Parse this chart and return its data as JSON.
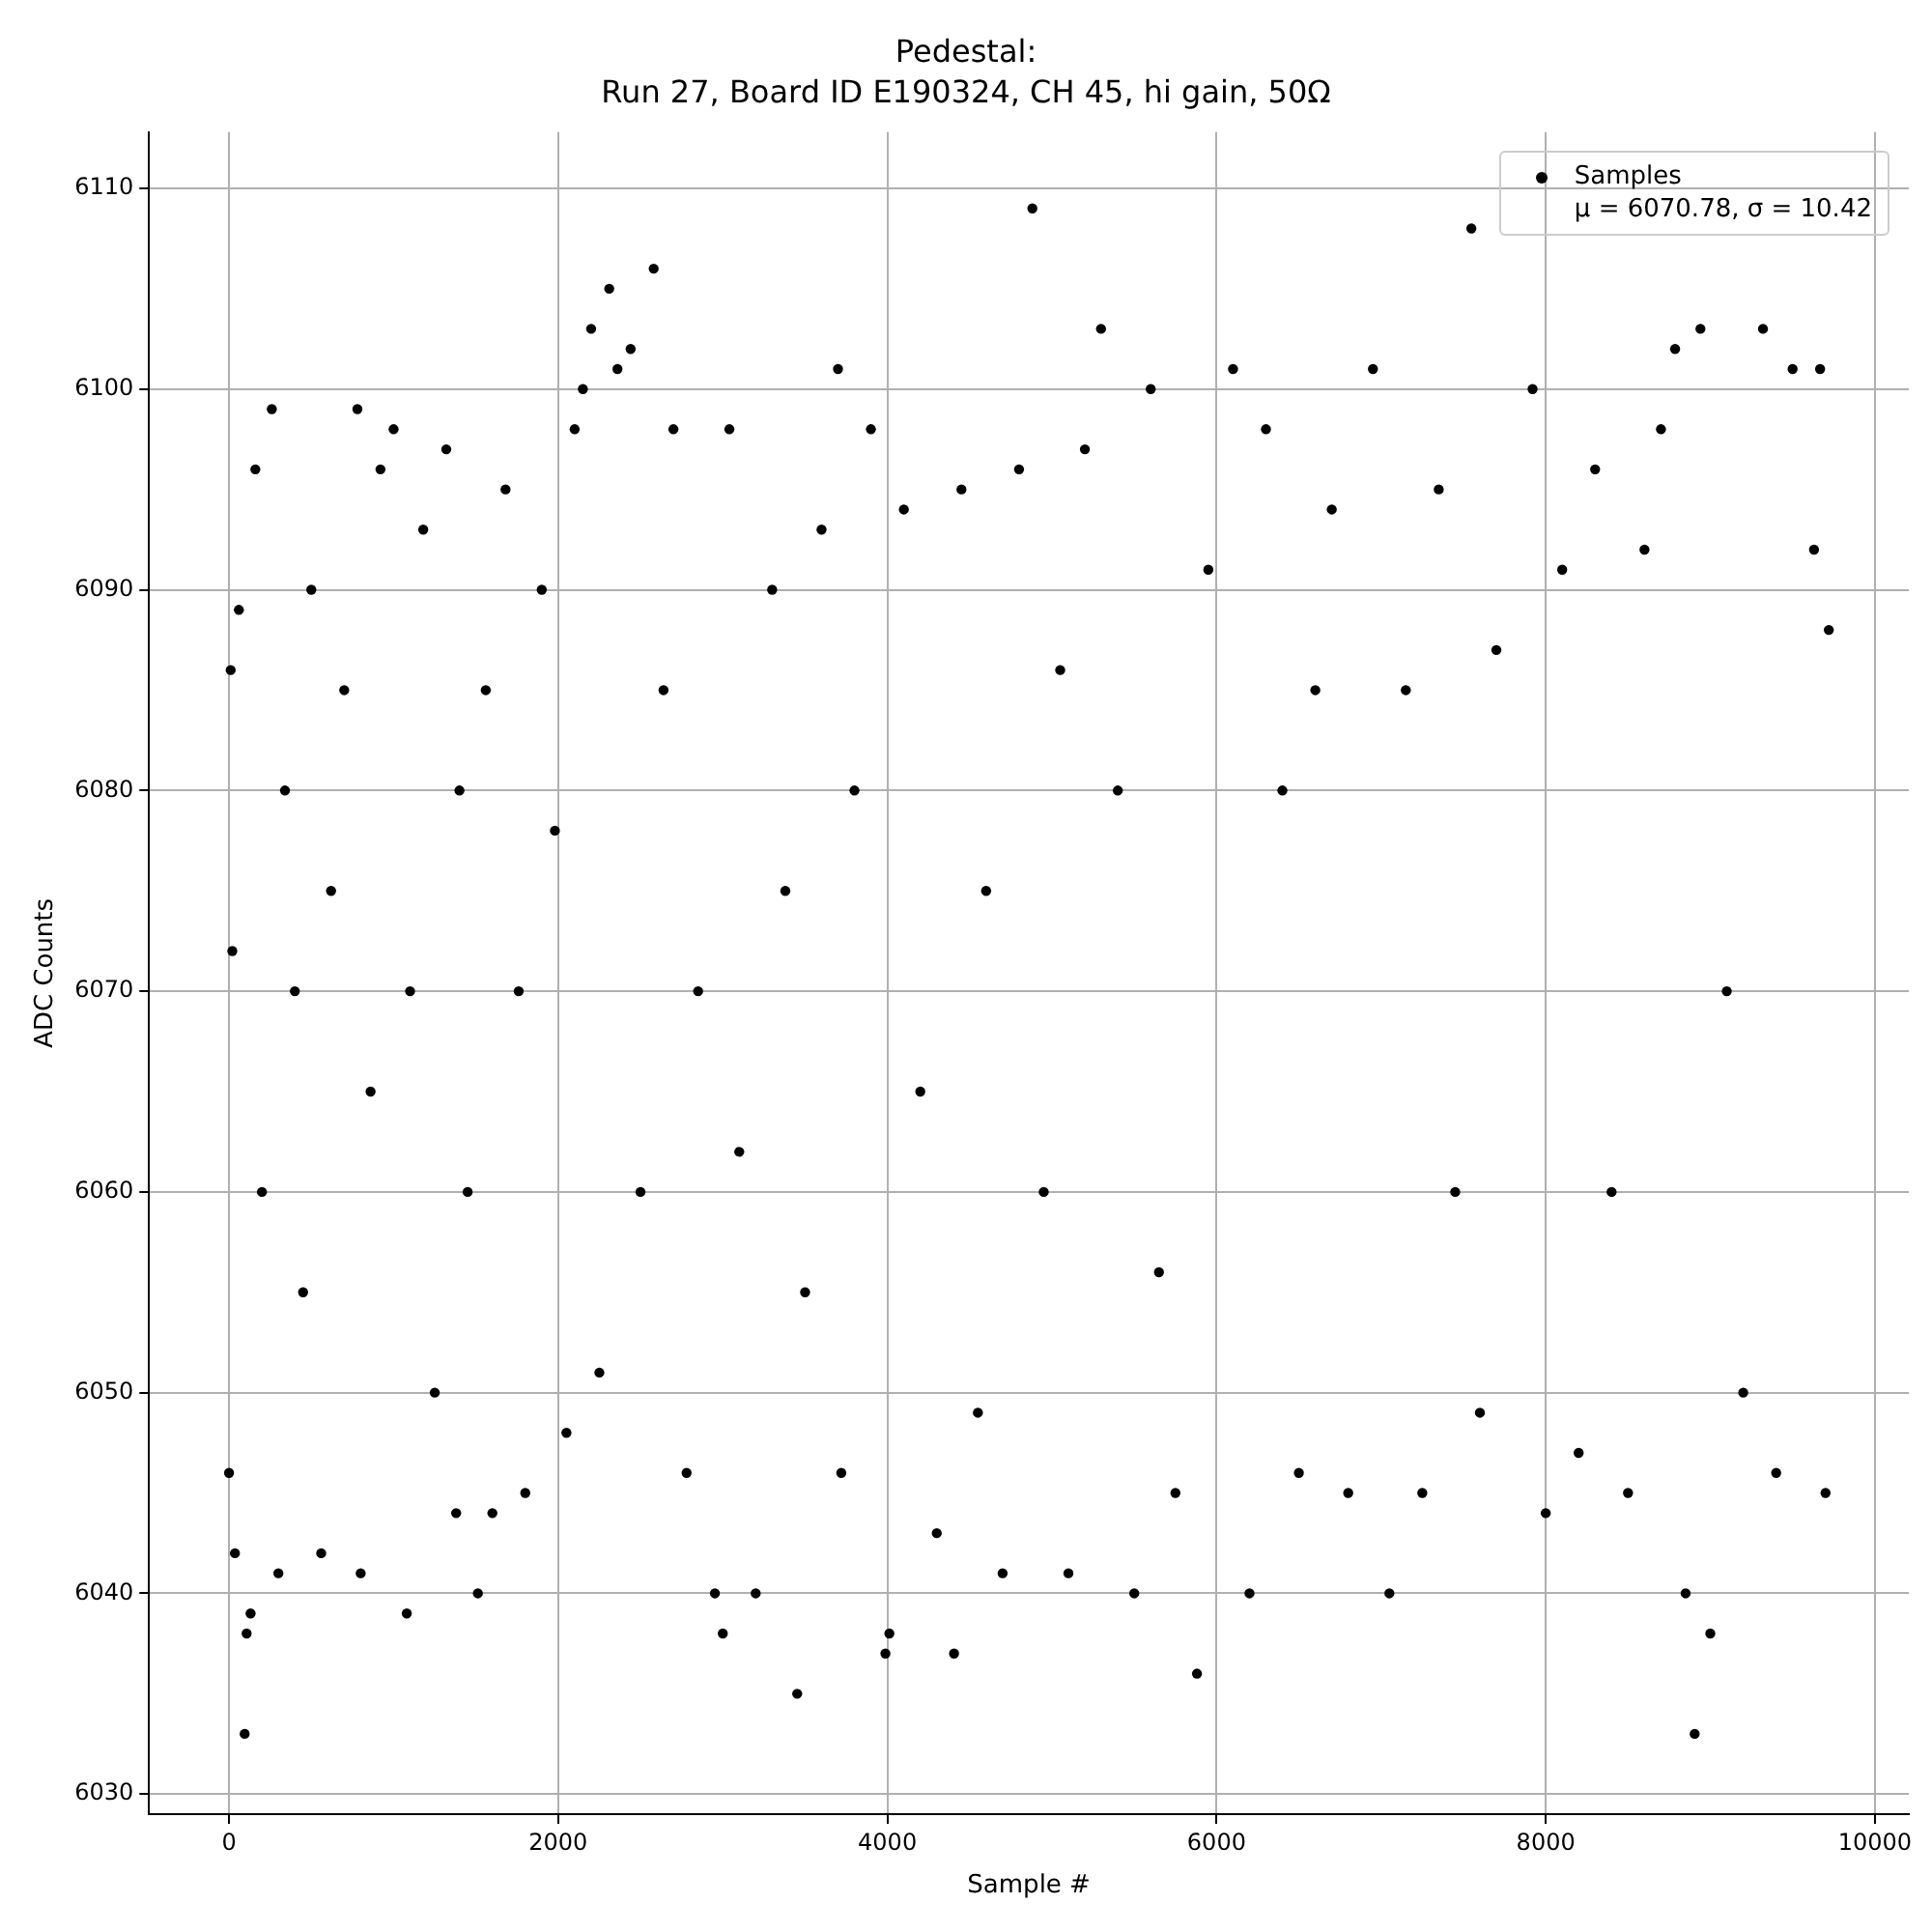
{
  "chart_data": {
    "type": "scatter",
    "title": "Pedestal:",
    "subtitle": "Run 27, Board ID E190324, CH 45, hi gain, 50Ω",
    "xlabel": "Sample #",
    "ylabel": "ADC Counts",
    "annotations": [
      "μ = 6070.78, σ = 10.42"
    ],
    "xlim": [
      -486,
      10206
    ],
    "ylim": [
      6029,
      6112.8
    ],
    "xticks": [
      0,
      2000,
      4000,
      6000,
      8000,
      10000
    ],
    "yticks": [
      6030,
      6040,
      6050,
      6060,
      6070,
      6080,
      6090,
      6100,
      6110
    ],
    "grid": true,
    "legend": "top right",
    "marker": "circle",
    "series": [
      {
        "name": "Samples",
        "color": "#000000",
        "x": [
          0,
          10,
          20,
          36,
          60,
          95,
          107,
          131,
          160,
          200,
          260,
          300,
          340,
          400,
          450,
          500,
          560,
          620,
          700,
          780,
          800,
          860,
          920,
          1000,
          1080,
          1100,
          1180,
          1250,
          1320,
          1380,
          1400,
          1450,
          1512,
          1560,
          1600,
          1680,
          1760,
          1800,
          1900,
          1980,
          2050,
          2100,
          2150,
          2200,
          2250,
          2310,
          2360,
          2440,
          2500,
          2580,
          2640,
          2700,
          2780,
          2850,
          2952,
          3000,
          3040,
          3100,
          3200,
          3300,
          3380,
          3452,
          3500,
          3600,
          3700,
          3720,
          3800,
          3900,
          3988,
          4012,
          4100,
          4200,
          4300,
          4405,
          4450,
          4550,
          4600,
          4700,
          4800,
          4881,
          4950,
          5050,
          5100,
          5200,
          5298,
          5400,
          5500,
          5600,
          5650,
          5750,
          5881,
          5950,
          6100,
          6200,
          6300,
          6400,
          6500,
          6600,
          6700,
          6800,
          6950,
          7050,
          7150,
          7250,
          7350,
          7450,
          7548,
          7600,
          7700,
          7920,
          8000,
          8100,
          8200,
          8300,
          8400,
          8500,
          8600,
          8700,
          8786,
          8850,
          8905,
          8940,
          9000,
          9100,
          9200,
          9320,
          9400,
          9500,
          9630,
          9667,
          9700,
          9720
        ],
        "values": [
          6046,
          6086,
          6072,
          6042,
          6089,
          6033,
          6038,
          6039,
          6096,
          6060,
          6099,
          6041,
          6080,
          6070,
          6055,
          6090,
          6042,
          6075,
          6085,
          6099,
          6041,
          6065,
          6096,
          6098,
          6039,
          6070,
          6093,
          6050,
          6097,
          6044,
          6080,
          6060,
          6040,
          6085,
          6044,
          6095,
          6070,
          6045,
          6090,
          6078,
          6048,
          6098,
          6100,
          6103,
          6051,
          6105,
          6101,
          6102,
          6060,
          6106,
          6085,
          6098,
          6046,
          6070,
          6040,
          6038,
          6098,
          6062,
          6040,
          6090,
          6075,
          6035,
          6055,
          6093,
          6101,
          6046,
          6080,
          6098,
          6037,
          6038,
          6094,
          6065,
          6043,
          6037,
          6095,
          6049,
          6075,
          6041,
          6096,
          6109,
          6060,
          6086,
          6041,
          6097,
          6103,
          6080,
          6040,
          6100,
          6056,
          6045,
          6036,
          6091,
          6101,
          6040,
          6098,
          6080,
          6046,
          6085,
          6094,
          6045,
          6101,
          6040,
          6085,
          6045,
          6095,
          6060,
          6108,
          6049,
          6087,
          6100,
          6044,
          6091,
          6047,
          6096,
          6060,
          6045,
          6092,
          6098,
          6102,
          6040,
          6033,
          6103,
          6038,
          6070,
          6050,
          6103,
          6046,
          6101,
          6092,
          6101,
          6045,
          6088
        ]
      }
    ]
  }
}
